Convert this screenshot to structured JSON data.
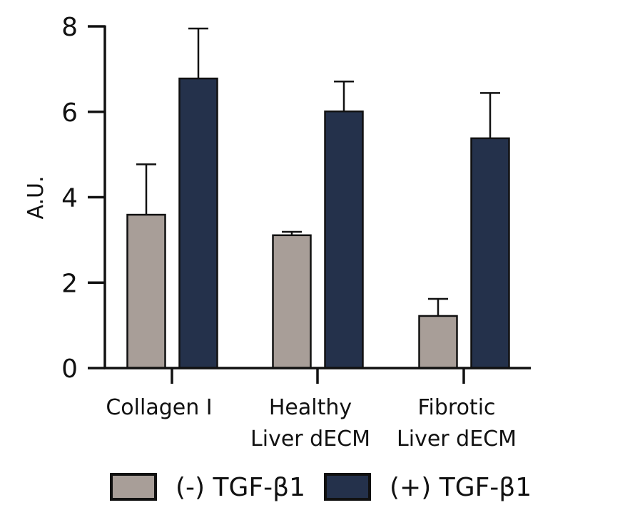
{
  "chart_data": {
    "type": "bar",
    "title": "",
    "xlabel": "",
    "ylabel": "A.U.",
    "ylim": [
      0,
      8
    ],
    "yticks": [
      0,
      2,
      4,
      6,
      8
    ],
    "categories": [
      [
        "Collagen I"
      ],
      [
        "Healthy",
        "Liver dECM"
      ],
      [
        "Fibrotic",
        "Liver dECM"
      ]
    ],
    "series": [
      {
        "name": "(-) TGF-β1",
        "color": "#a89e98",
        "values": [
          3.59,
          3.11,
          1.22
        ],
        "error_upper": [
          4.77,
          3.19,
          1.62
        ]
      },
      {
        "name": "(+) TGF-β1",
        "color": "#24314b",
        "values": [
          6.78,
          6.01,
          5.38
        ],
        "error_upper": [
          7.95,
          6.71,
          6.44
        ]
      }
    ],
    "grid": false,
    "legend": "bottom"
  }
}
